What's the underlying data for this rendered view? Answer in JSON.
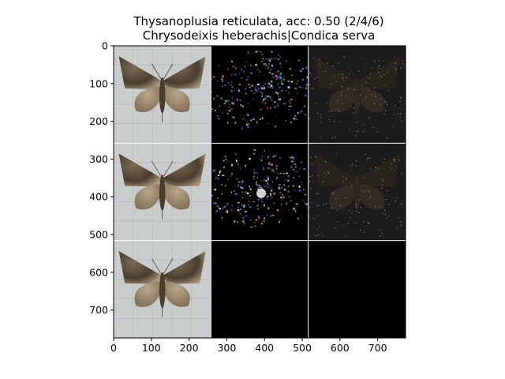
{
  "chart_data": {
    "type": "image-grid",
    "title_lines": [
      "Thysanoplusia reticulata, acc: 0.50 (2/4/6)",
      "Chrysodeixis heberachis|Condica serva"
    ],
    "xlim": [
      0,
      774
    ],
    "ylim": [
      774,
      0
    ],
    "x_ticks": [
      0,
      100,
      200,
      300,
      400,
      500,
      600,
      700
    ],
    "y_ticks": [
      0,
      100,
      200,
      300,
      400,
      500,
      600,
      700
    ],
    "grid": {
      "rows": 3,
      "cols": 3,
      "cell_size": 258
    },
    "panels": [
      {
        "row": 0,
        "col": 0,
        "kind": "specimen",
        "subject": "moth-photo"
      },
      {
        "row": 0,
        "col": 1,
        "kind": "sparse-heatmap",
        "subject": "attribution-map"
      },
      {
        "row": 0,
        "col": 2,
        "kind": "dim-overlay",
        "subject": "masked-moth"
      },
      {
        "row": 1,
        "col": 0,
        "kind": "specimen",
        "subject": "moth-photo"
      },
      {
        "row": 1,
        "col": 1,
        "kind": "sparse-heatmap",
        "subject": "attribution-map"
      },
      {
        "row": 1,
        "col": 2,
        "kind": "dim-overlay",
        "subject": "masked-moth"
      },
      {
        "row": 2,
        "col": 0,
        "kind": "specimen",
        "subject": "moth-photo"
      },
      {
        "row": 2,
        "col": 1,
        "kind": "blank",
        "subject": "empty"
      },
      {
        "row": 2,
        "col": 2,
        "kind": "blank",
        "subject": "empty"
      }
    ],
    "colors": {
      "specimen_bg": "#c8cccd",
      "specimen_grid": "#9aa0a4",
      "moth_dark": "#4a3d2e",
      "moth_mid": "#7d6a52",
      "moth_light": "#b9a78a",
      "heatmap_bg": "#000000",
      "overlay_bg": "#1b1b1b",
      "separator": "#ffffff"
    }
  }
}
